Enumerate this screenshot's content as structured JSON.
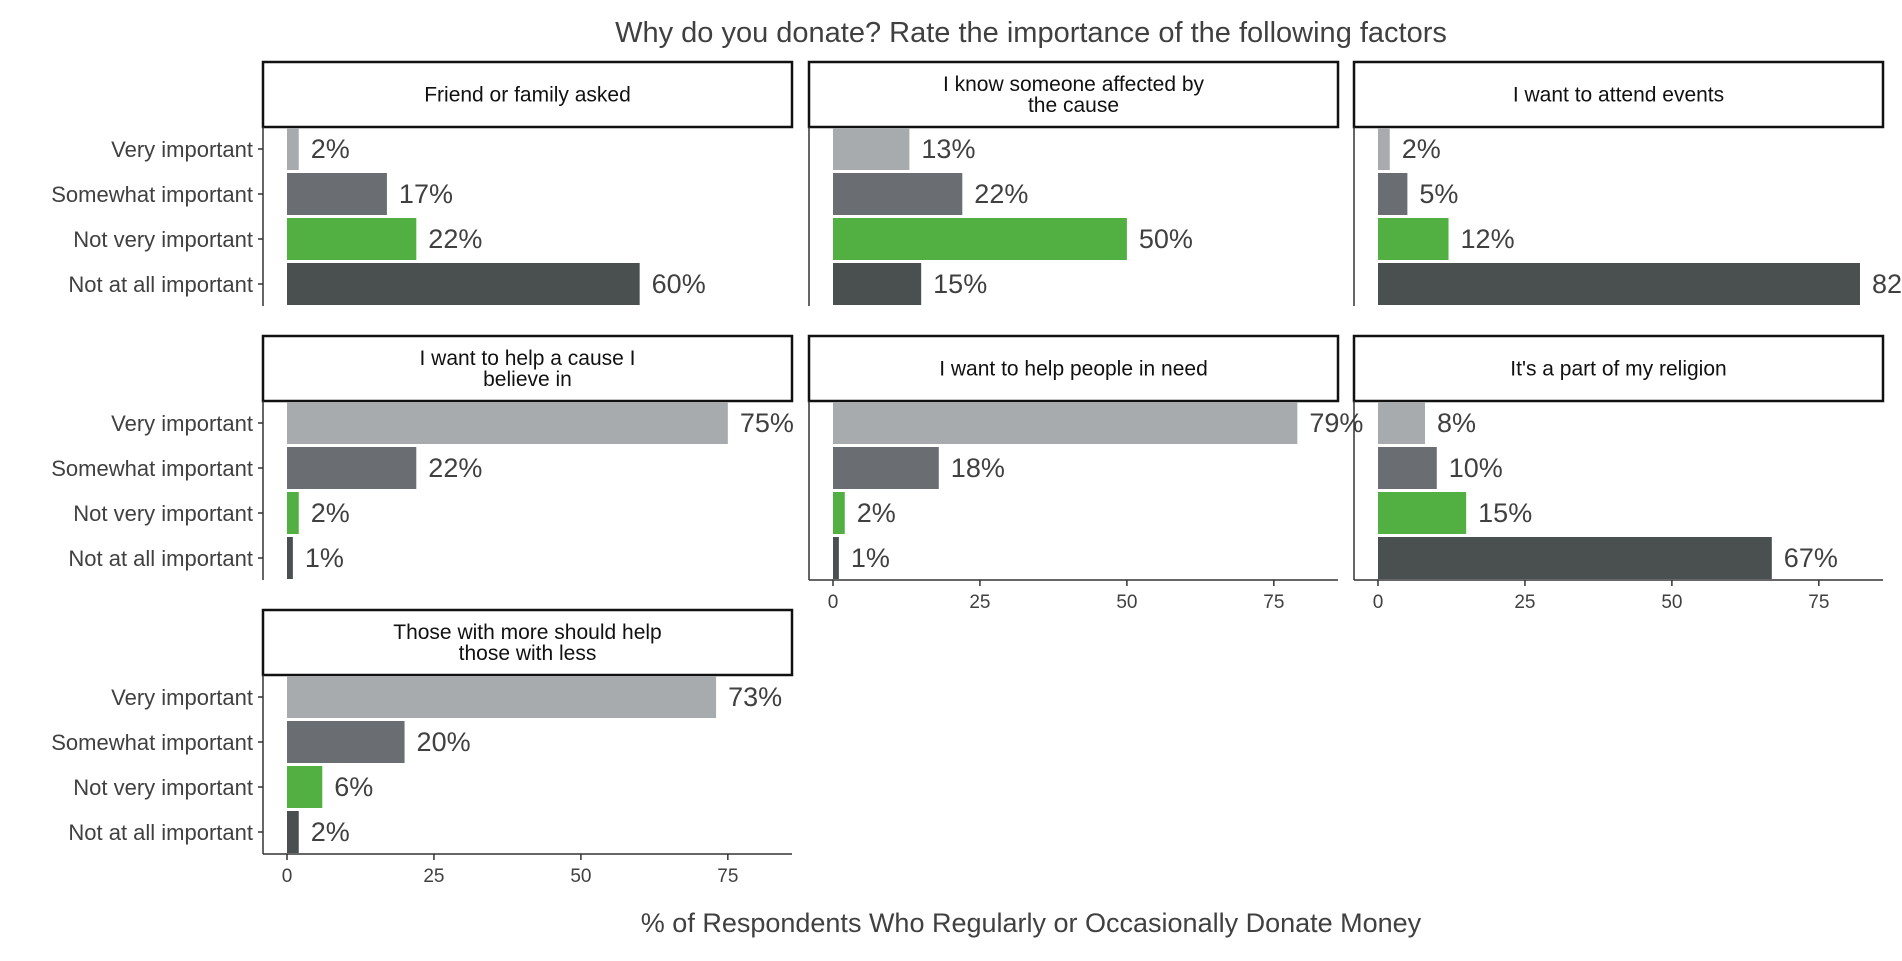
{
  "chart_data": {
    "type": "bar",
    "orientation": "horizontal",
    "title": "Why do you donate? Rate the importance of the following factors",
    "xlabel": "% of Respondents Who Regularly or Occasionally Donate Money",
    "xlim": [
      0,
      90
    ],
    "xticks": [
      0,
      25,
      50,
      75
    ],
    "categories": [
      "Very important",
      "Somewhat important",
      "Not very important",
      "Not at all important"
    ],
    "category_colors": [
      "#a7abae",
      "#6a6e72",
      "#52b043",
      "#4a4f50"
    ],
    "value_suffix": "%",
    "grid": false,
    "panels": [
      {
        "title": "Friend or family asked",
        "values": [
          2,
          17,
          22,
          60
        ]
      },
      {
        "title": "I know someone affected by\nthe cause",
        "values": [
          13,
          22,
          50,
          15
        ]
      },
      {
        "title": "I want to attend events",
        "values": [
          2,
          5,
          12,
          82
        ]
      },
      {
        "title": "I want to help a cause I\nbelieve in",
        "values": [
          75,
          22,
          2,
          1
        ]
      },
      {
        "title": "I want to help people in need",
        "values": [
          79,
          18,
          2,
          1
        ]
      },
      {
        "title": "It's a part of my religion",
        "values": [
          8,
          10,
          15,
          67
        ]
      },
      {
        "title": "Those with more should help\nthose with less",
        "values": [
          73,
          20,
          6,
          2
        ]
      }
    ]
  }
}
